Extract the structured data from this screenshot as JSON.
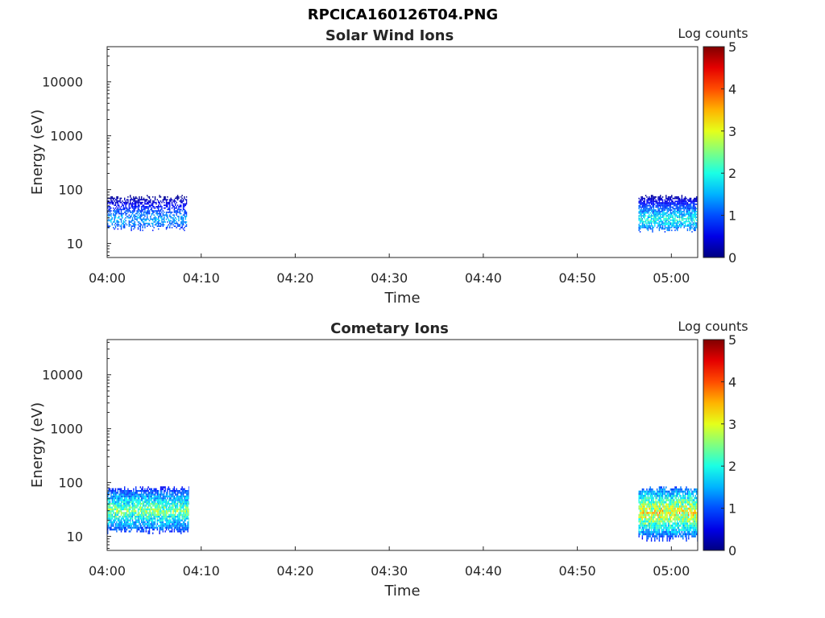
{
  "figure": {
    "title": "RPCICA160126T04.PNG"
  },
  "colors": {
    "colormap": "jet",
    "axis": "#262626",
    "background": "#ffffff"
  },
  "chart_data": [
    {
      "type": "heatmap",
      "title": "Solar Wind Ions",
      "xlabel": "Time",
      "ylabel": "Energy (eV)",
      "x_ticks": [
        "04:00",
        "04:10",
        "04:20",
        "04:30",
        "04:40",
        "04:50",
        "05:00"
      ],
      "y_ticks": [
        "10",
        "100",
        "1000",
        "10000"
      ],
      "y_scale": "log",
      "ylim": [
        5.5,
        45000
      ],
      "xlim_minutes": [
        0,
        62.8
      ],
      "colorbar": {
        "label": "Log counts",
        "ticks": [
          "0",
          "1",
          "2",
          "3",
          "4",
          "5"
        ],
        "range": [
          0,
          5
        ]
      },
      "blocks": [
        {
          "t_start": 0.0,
          "t_end": 8.5,
          "e_min": 17,
          "e_max": 80,
          "peak_energy": 28,
          "peak_log_counts": 1.6,
          "density": 0.55
        },
        {
          "t_start": 56.5,
          "t_end": 62.8,
          "e_min": 16,
          "e_max": 80,
          "peak_energy": 28,
          "peak_log_counts": 2.1,
          "density": 0.8
        }
      ]
    },
    {
      "type": "heatmap",
      "title": "Cometary Ions",
      "xlabel": "Time",
      "ylabel": "Energy (eV)",
      "x_ticks": [
        "04:00",
        "04:10",
        "04:20",
        "04:30",
        "04:40",
        "04:50",
        "05:00"
      ],
      "y_ticks": [
        "10",
        "100",
        "1000",
        "10000"
      ],
      "y_scale": "log",
      "ylim": [
        5.5,
        45000
      ],
      "xlim_minutes": [
        0,
        62.8
      ],
      "colorbar": {
        "label": "Log counts",
        "ticks": [
          "0",
          "1",
          "2",
          "3",
          "4",
          "5"
        ],
        "range": [
          0,
          5
        ]
      },
      "blocks": [
        {
          "t_start": 0.0,
          "t_end": 8.7,
          "e_min": 11,
          "e_max": 85,
          "peak_energy": 30,
          "peak_log_counts": 2.7,
          "density": 0.85
        },
        {
          "t_start": 56.5,
          "t_end": 62.8,
          "e_min": 8,
          "e_max": 85,
          "peak_energy": 28,
          "peak_log_counts": 3.4,
          "density": 0.9
        }
      ]
    }
  ]
}
